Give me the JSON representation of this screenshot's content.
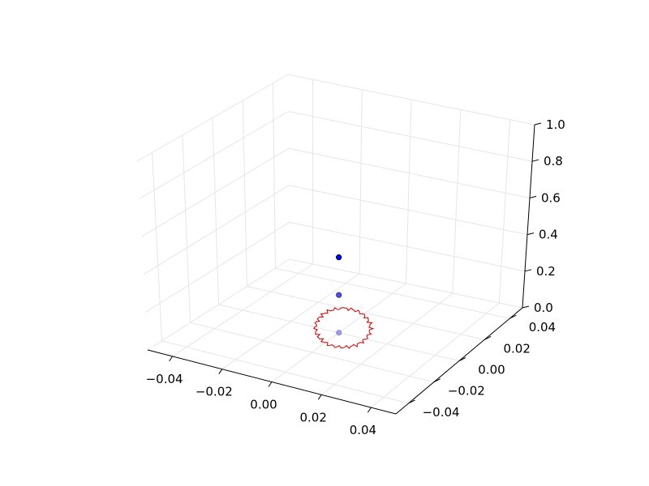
{
  "chart_data": {
    "type": "scatter",
    "projection": "3d",
    "title": "",
    "xlabel": "",
    "ylabel": "",
    "zlabel": "",
    "xlim": [
      -0.05,
      0.05
    ],
    "ylim": [
      -0.05,
      0.05
    ],
    "zlim": [
      0,
      1
    ],
    "grid": true,
    "x_ticks": [
      "−0.04",
      "−0.02",
      "0.00",
      "0.02",
      "0.04"
    ],
    "y_ticks": [
      "−0.04",
      "−0.02",
      "0.00",
      "0.02",
      "0.04"
    ],
    "z_ticks": [
      "0.0",
      "0.2",
      "0.4",
      "0.6",
      "0.8",
      "1.0"
    ],
    "points": [
      {
        "x": 0,
        "y": 0,
        "z": 0.4,
        "alpha": 1.0
      },
      {
        "x": 0,
        "y": 0,
        "z": 0.2,
        "alpha": 0.7
      },
      {
        "x": 0,
        "y": 0,
        "z": 0.0,
        "alpha": 0.35
      }
    ],
    "point_color": "#0000ff",
    "annotation": {
      "type": "hand-drawn-circle",
      "color": "#cc0000",
      "target_point": 2
    }
  }
}
